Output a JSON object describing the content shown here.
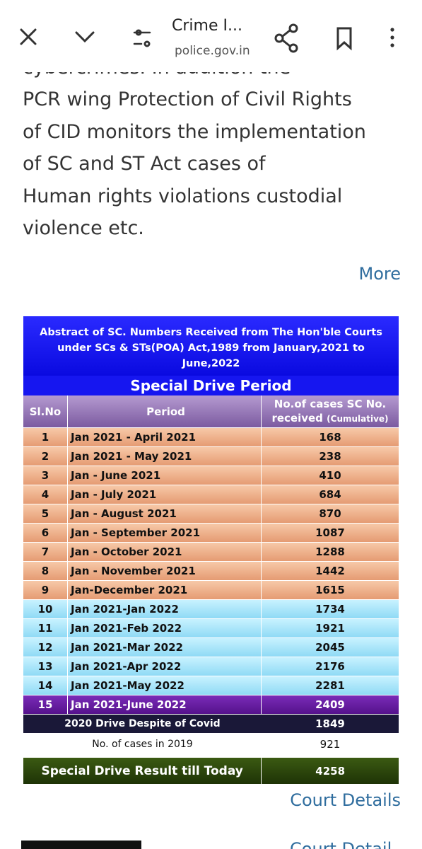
{
  "toolbar": {
    "title": "Crime I...",
    "url": "police.gov.in"
  },
  "article": {
    "lines": [
      "cybercrimes. In addition the",
      "PCR wing Protection of Civil Rights",
      "of CID monitors the implementation",
      "of SC and ST Act cases of",
      "Human rights violations custodial",
      "violence etc."
    ],
    "more": "More"
  },
  "table": {
    "title": "Abstract of SC. Numbers Received from The Hon'ble Courts under SCs & STs(POA) Act,1989  from January,2021 to June,2022",
    "subtitle": "Special Drive Period",
    "columns": [
      "Sl.No",
      "Period",
      "No.of cases SC No. received"
    ],
    "column_note": "(Cumulative)",
    "rows": [
      [
        1,
        "Jan 2021 - April 2021",
        168
      ],
      [
        2,
        "Jan 2021 - May 2021",
        238
      ],
      [
        3,
        "Jan - June 2021",
        410
      ],
      [
        4,
        "Jan - July 2021",
        684
      ],
      [
        5,
        "Jan - August 2021",
        870
      ],
      [
        6,
        "Jan - September 2021",
        1087
      ],
      [
        7,
        "Jan - October 2021",
        1288
      ],
      [
        8,
        "Jan - November 2021",
        1442
      ],
      [
        9,
        "Jan-December 2021",
        1615
      ],
      [
        10,
        "Jan 2021-Jan 2022",
        1734
      ],
      [
        11,
        "Jan 2021-Feb 2022",
        1921
      ],
      [
        12,
        "Jan 2021-Mar 2022",
        2045
      ],
      [
        13,
        "Jan 2021-Apr 2022",
        2176
      ],
      [
        14,
        "Jan 2021-May 2022",
        2281
      ],
      [
        15,
        "Jan 2021-June 2022",
        2409
      ]
    ],
    "footer": [
      [
        "2020 Drive Despite of Covid",
        1849
      ],
      [
        "No. of cases in 2019",
        921
      ],
      [
        "Special Drive Result till Today",
        4258
      ]
    ]
  },
  "links": [
    "Court Details",
    "Court Detail"
  ]
}
